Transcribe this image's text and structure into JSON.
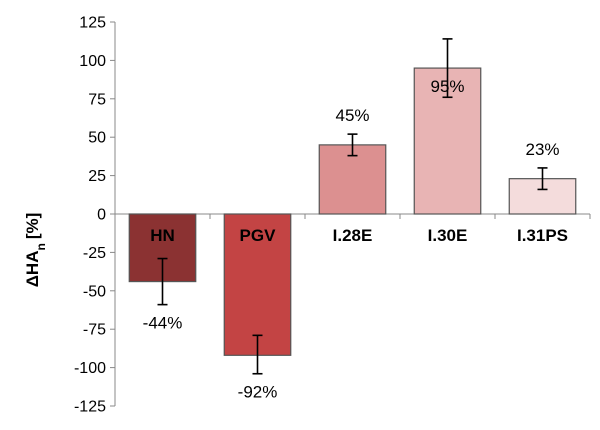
{
  "chart_data": {
    "type": "bar",
    "title": "",
    "xlabel": "",
    "ylabel": "ΔHA",
    "ylabel_subscript": "n",
    "ylabel_unit": "[%]",
    "ylim": [
      -125,
      125
    ],
    "yticks": [
      125,
      100,
      75,
      50,
      25,
      0,
      -25,
      -50,
      -75,
      -100,
      -125
    ],
    "categories": [
      "HN",
      "PGV",
      "I.28E",
      "I.30E",
      "I.31PS"
    ],
    "values": [
      -44,
      -92,
      45,
      95,
      23
    ],
    "error_low": [
      -59,
      -104,
      38,
      76,
      16
    ],
    "error_high": [
      -29,
      -79,
      52,
      114,
      30
    ],
    "data_labels": [
      "-44%",
      "-92%",
      "45%",
      "95%",
      "23%"
    ],
    "colors": [
      "#8b3232",
      "#c34444",
      "#dc9090",
      "#e8b4b4",
      "#f4dcdc"
    ],
    "grid": false,
    "legend": "none"
  }
}
